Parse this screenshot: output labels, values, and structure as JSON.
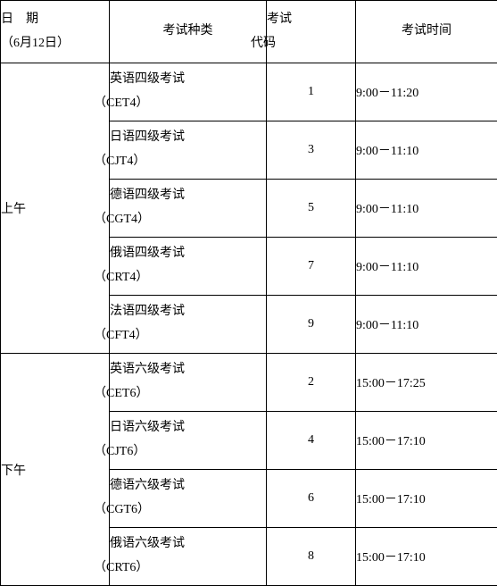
{
  "header": {
    "date_label": "日　期",
    "date_sub": "（6月12日）",
    "exam_type": "考试种类",
    "exam_code_line1": "考试",
    "exam_code_line2": "代码",
    "exam_time": "考试时间"
  },
  "sessions": [
    {
      "label": "上午",
      "rows": [
        {
          "name": "英语四级考试",
          "abbr": "（CET4）",
          "code": "1",
          "time": "9:00－11:20"
        },
        {
          "name": "日语四级考试",
          "abbr": "（CJT4）",
          "code": "3",
          "time": "9:00－11:10"
        },
        {
          "name": "德语四级考试",
          "abbr": "（CGT4）",
          "code": "5",
          "time": "9:00－11:10"
        },
        {
          "name": "俄语四级考试",
          "abbr": "（CRT4）",
          "code": "7",
          "time": "9:00－11:10"
        },
        {
          "name": "法语四级考试",
          "abbr": "（CFT4）",
          "code": "9",
          "time": "9:00－11:10"
        }
      ]
    },
    {
      "label": "下午",
      "rows": [
        {
          "name": "英语六级考试",
          "abbr": "（CET6）",
          "code": "2",
          "time": "15:00－17:25"
        },
        {
          "name": "日语六级考试",
          "abbr": "（CJT6）",
          "code": "4",
          "time": "15:00－17:10"
        },
        {
          "name": "德语六级考试",
          "abbr": "（CGT6）",
          "code": "6",
          "time": "15:00－17:10"
        },
        {
          "name": "俄语六级考试",
          "abbr": "（CRT6）",
          "code": "8",
          "time": "15:00－17:10"
        }
      ]
    }
  ]
}
